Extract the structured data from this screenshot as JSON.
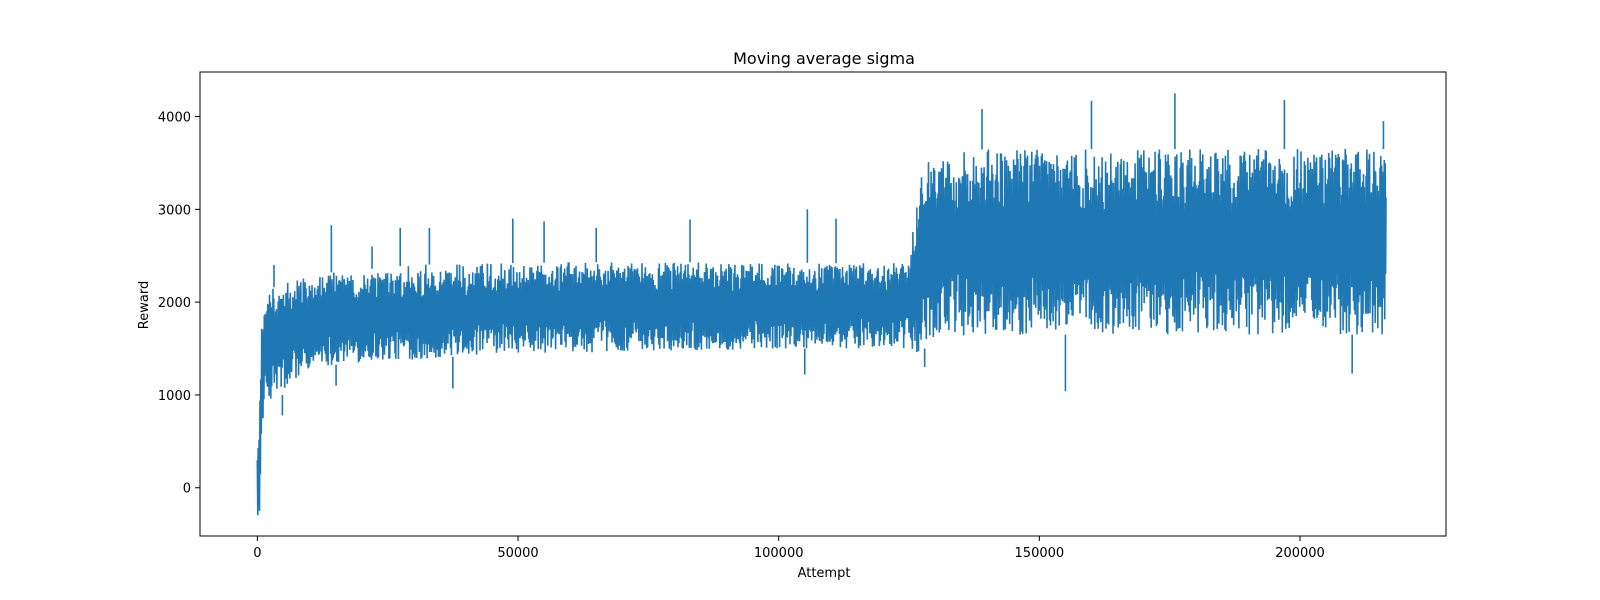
{
  "chart_data": {
    "type": "line",
    "title": "Moving average sigma",
    "xlabel": "Attempt",
    "ylabel": "Reward",
    "xlim": [
      -11000,
      228000
    ],
    "ylim": [
      -520,
      4480
    ],
    "x_ticks": [
      0,
      50000,
      100000,
      150000,
      200000
    ],
    "y_ticks": [
      0,
      1000,
      2000,
      3000,
      4000
    ],
    "x_tick_labels": [
      "0",
      "50000",
      "100000",
      "150000",
      "200000"
    ],
    "y_tick_labels": [
      "0",
      "1000",
      "2000",
      "3000",
      "4000"
    ],
    "grid": false,
    "legend": "none",
    "series": [
      {
        "color": "#1f77b4",
        "envelope": [
          {
            "x": 0,
            "min": -300,
            "max": 300
          },
          {
            "x": 500,
            "min": -300,
            "max": 1200
          },
          {
            "x": 1000,
            "min": 700,
            "max": 2000
          },
          {
            "x": 2000,
            "min": 900,
            "max": 2100
          },
          {
            "x": 3000,
            "min": 1000,
            "max": 2150
          },
          {
            "x": 5000,
            "min": 1000,
            "max": 2250
          },
          {
            "x": 10000,
            "min": 1300,
            "max": 2300
          },
          {
            "x": 20000,
            "min": 1350,
            "max": 2350
          },
          {
            "x": 30000,
            "min": 1380,
            "max": 2400
          },
          {
            "x": 40000,
            "min": 1420,
            "max": 2420
          },
          {
            "x": 50000,
            "min": 1450,
            "max": 2420
          },
          {
            "x": 60000,
            "min": 1450,
            "max": 2430
          },
          {
            "x": 70000,
            "min": 1470,
            "max": 2430
          },
          {
            "x": 80000,
            "min": 1480,
            "max": 2430
          },
          {
            "x": 90000,
            "min": 1480,
            "max": 2430
          },
          {
            "x": 100000,
            "min": 1500,
            "max": 2430
          },
          {
            "x": 110000,
            "min": 1500,
            "max": 2420
          },
          {
            "x": 120000,
            "min": 1500,
            "max": 2420
          },
          {
            "x": 125000,
            "min": 1500,
            "max": 2450
          },
          {
            "x": 126000,
            "min": 1450,
            "max": 3000
          },
          {
            "x": 128000,
            "min": 1500,
            "max": 3500
          },
          {
            "x": 130000,
            "min": 1600,
            "max": 3600
          },
          {
            "x": 140000,
            "min": 1650,
            "max": 3650
          },
          {
            "x": 150000,
            "min": 1650,
            "max": 3650
          },
          {
            "x": 160000,
            "min": 1650,
            "max": 3650
          },
          {
            "x": 170000,
            "min": 1650,
            "max": 3650
          },
          {
            "x": 180000,
            "min": 1650,
            "max": 3650
          },
          {
            "x": 190000,
            "min": 1650,
            "max": 3650
          },
          {
            "x": 200000,
            "min": 1650,
            "max": 3650
          },
          {
            "x": 210000,
            "min": 1650,
            "max": 3650
          },
          {
            "x": 216500,
            "min": 1650,
            "max": 3650
          }
        ],
        "spikes": [
          {
            "x": 500,
            "y": -300
          },
          {
            "x": 3200,
            "y": 2400
          },
          {
            "x": 4800,
            "y": 780
          },
          {
            "x": 14200,
            "y": 2830
          },
          {
            "x": 15100,
            "y": 1100
          },
          {
            "x": 22000,
            "y": 2600
          },
          {
            "x": 27400,
            "y": 2800
          },
          {
            "x": 33000,
            "y": 2800
          },
          {
            "x": 37500,
            "y": 1070
          },
          {
            "x": 49000,
            "y": 2900
          },
          {
            "x": 55000,
            "y": 2870
          },
          {
            "x": 65000,
            "y": 2800
          },
          {
            "x": 83000,
            "y": 2890
          },
          {
            "x": 105500,
            "y": 3000
          },
          {
            "x": 105000,
            "y": 1220
          },
          {
            "x": 111000,
            "y": 2900
          },
          {
            "x": 126500,
            "y": 3020
          },
          {
            "x": 128000,
            "y": 1300
          },
          {
            "x": 139000,
            "y": 4080
          },
          {
            "x": 155000,
            "y": 1040
          },
          {
            "x": 160000,
            "y": 4170
          },
          {
            "x": 176000,
            "y": 4250
          },
          {
            "x": 197000,
            "y": 4180
          },
          {
            "x": 210000,
            "y": 1230
          },
          {
            "x": 216000,
            "y": 3950
          }
        ]
      }
    ]
  }
}
